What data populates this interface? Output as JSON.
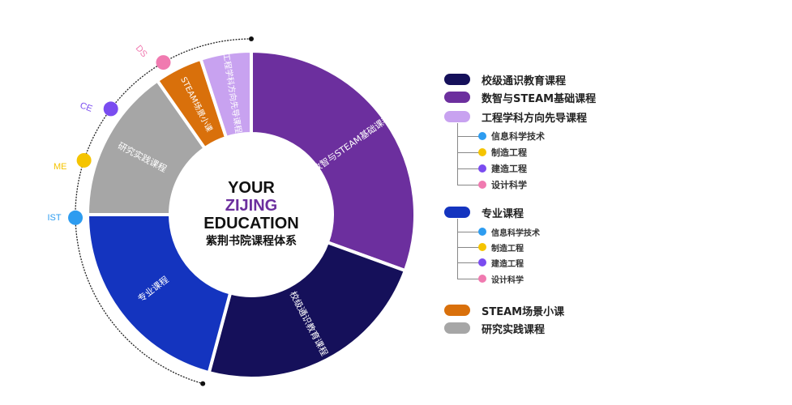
{
  "center": {
    "line1": "YOUR",
    "line2": "ZIJING",
    "line3": "EDUCATION",
    "line4": "紫荆书院课程体系"
  },
  "chart_data": {
    "type": "donut",
    "segments": [
      {
        "label": "数智与STEAM基础课程",
        "start_deg": 0,
        "end_deg": 110,
        "color": "#6c2f9e"
      },
      {
        "label": "校级通识教育课程",
        "start_deg": 110,
        "end_deg": 195,
        "color": "#15105a"
      },
      {
        "label": "专业课程",
        "start_deg": 195,
        "end_deg": 270,
        "color": "#1434bf"
      },
      {
        "label": "研究实践课程",
        "start_deg": 270,
        "end_deg": 325,
        "color": "#a6a6a6"
      },
      {
        "label": "STEAM场景小课",
        "start_deg": 325,
        "end_deg": 342,
        "color": "#d9700b"
      },
      {
        "label": "工程学科方向先导课程",
        "start_deg": 342,
        "end_deg": 360,
        "color": "#c8a2f0"
      }
    ],
    "track_markers": [
      {
        "label": "IST",
        "angle_deg": 269,
        "color": "#2d9cf0"
      },
      {
        "label": "ME",
        "angle_deg": 288,
        "color": "#f5c400"
      },
      {
        "label": "CE",
        "angle_deg": 307,
        "color": "#7a4cf0"
      },
      {
        "label": "DS",
        "angle_deg": 330,
        "color": "#f07ab0"
      }
    ]
  },
  "legend": {
    "items": [
      {
        "label": "校级通识教育课程",
        "color": "#15105a"
      },
      {
        "label": "数智与STEAM基础课程",
        "color": "#6c2f9e"
      },
      {
        "label": "工程学科方向先导课程",
        "color": "#c8a2f0"
      },
      {
        "label": "专业课程",
        "color": "#1434bf"
      },
      {
        "label": "STEAM场景小课",
        "color": "#d9700b"
      },
      {
        "label": "研究实践课程",
        "color": "#a6a6a6"
      }
    ],
    "sub_a": [
      {
        "label": "信息科学技术",
        "color": "#2d9cf0"
      },
      {
        "label": "制造工程",
        "color": "#f5c400"
      },
      {
        "label": "建造工程",
        "color": "#7a4cf0"
      },
      {
        "label": "设计科学",
        "color": "#f07ab0"
      }
    ],
    "sub_b": [
      {
        "label": "信息科学技术",
        "color": "#2d9cf0"
      },
      {
        "label": "制造工程",
        "color": "#f5c400"
      },
      {
        "label": "建造工程",
        "color": "#7a4cf0"
      },
      {
        "label": "设计科学",
        "color": "#f07ab0"
      }
    ]
  }
}
